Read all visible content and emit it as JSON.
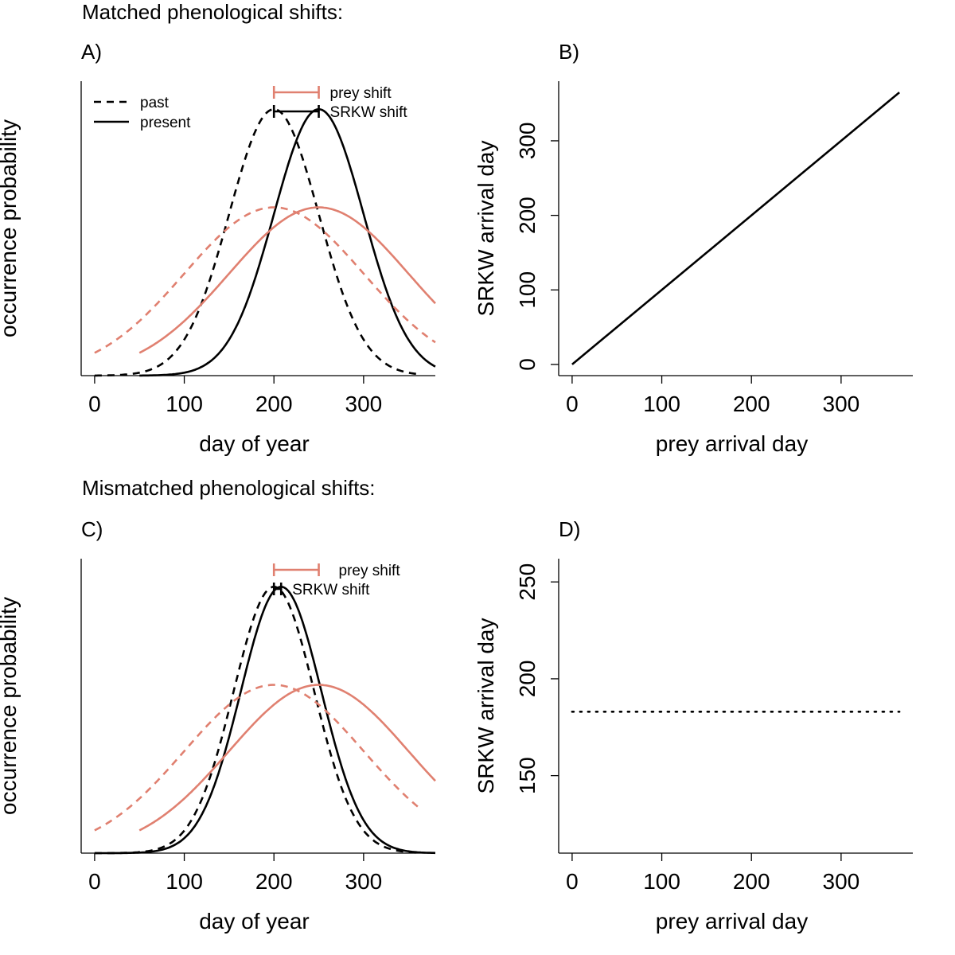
{
  "sections": {
    "top": "Matched phenological shifts:",
    "bottom": "Mismatched phenological shifts:"
  },
  "colors": {
    "prey": "#e08070",
    "srkw": "#000000"
  },
  "chart_data": [
    {
      "panel": "A)",
      "type": "line",
      "xlabel": "day of year",
      "ylabel": "occurrence probability",
      "xlim": [
        -15,
        380
      ],
      "ylim": [
        0,
        1.05
      ],
      "xticks": [
        0,
        100,
        200,
        300
      ],
      "legend_linetype": [
        {
          "label": "past",
          "style": "dashed"
        },
        {
          "label": "present",
          "style": "solid"
        }
      ],
      "legend_shift": [
        {
          "label": "prey shift",
          "series": "prey",
          "from": 200,
          "to": 250
        },
        {
          "label": "SRKW shift",
          "series": "srkw",
          "from": 200,
          "to": 250
        }
      ],
      "series": [
        {
          "name": "SRKW past",
          "group": "srkw",
          "style": "dashed",
          "mean": 200,
          "sd": 50,
          "peak": 0.95,
          "xrange": [
            0,
            360
          ]
        },
        {
          "name": "SRKW present",
          "group": "srkw",
          "style": "solid",
          "mean": 250,
          "sd": 50,
          "peak": 0.95,
          "xrange": [
            50,
            380
          ]
        },
        {
          "name": "prey past",
          "group": "prey",
          "style": "dashed",
          "mean": 200,
          "sd": 100,
          "peak": 0.6,
          "xrange": [
            0,
            380
          ]
        },
        {
          "name": "prey present",
          "group": "prey",
          "style": "solid",
          "mean": 250,
          "sd": 100,
          "peak": 0.6,
          "xrange": [
            50,
            380
          ]
        }
      ]
    },
    {
      "panel": "B)",
      "type": "line",
      "xlabel": "prey arrival day",
      "ylabel": "SRKW arrival day",
      "xlim": [
        -15,
        380
      ],
      "ylim": [
        -15,
        380
      ],
      "xticks": [
        0,
        100,
        200,
        300
      ],
      "yticks": [
        0,
        100,
        200,
        300
      ],
      "series": [
        {
          "name": "SRKW arrival",
          "style": "solid",
          "x": [
            0,
            365
          ],
          "y": [
            0,
            365
          ]
        }
      ]
    },
    {
      "panel": "C)",
      "type": "line",
      "xlabel": "day of year",
      "ylabel": "occurrence probability",
      "xlim": [
        -15,
        380
      ],
      "ylim": [
        0,
        1.05
      ],
      "xticks": [
        0,
        100,
        200,
        300
      ],
      "legend_shift": [
        {
          "label": "prey shift",
          "series": "prey",
          "from": 200,
          "to": 250
        },
        {
          "label": "SRKW shift",
          "series": "srkw",
          "from": 200,
          "to": 208
        }
      ],
      "series": [
        {
          "name": "SRKW past",
          "group": "srkw",
          "style": "dashed",
          "mean": 200,
          "sd": 45,
          "peak": 0.95,
          "xrange": [
            0,
            360
          ]
        },
        {
          "name": "SRKW present",
          "group": "srkw",
          "style": "solid",
          "mean": 208,
          "sd": 45,
          "peak": 0.95,
          "xrange": [
            0,
            380
          ]
        },
        {
          "name": "prey past",
          "group": "prey",
          "style": "dashed",
          "mean": 200,
          "sd": 100,
          "peak": 0.6,
          "xrange": [
            0,
            365
          ]
        },
        {
          "name": "prey present",
          "group": "prey",
          "style": "solid",
          "mean": 250,
          "sd": 100,
          "peak": 0.6,
          "xrange": [
            50,
            380
          ]
        }
      ]
    },
    {
      "panel": "D)",
      "type": "line",
      "xlabel": "prey arrival day",
      "ylabel": "SRKW arrival day",
      "xlim": [
        -15,
        380
      ],
      "ylim": [
        110,
        262
      ],
      "xticks": [
        0,
        100,
        200,
        300
      ],
      "yticks": [
        150,
        200,
        250
      ],
      "series": [
        {
          "name": "SRKW arrival",
          "style": "dotted",
          "x": [
            0,
            365
          ],
          "y": [
            183,
            183
          ]
        }
      ]
    }
  ]
}
